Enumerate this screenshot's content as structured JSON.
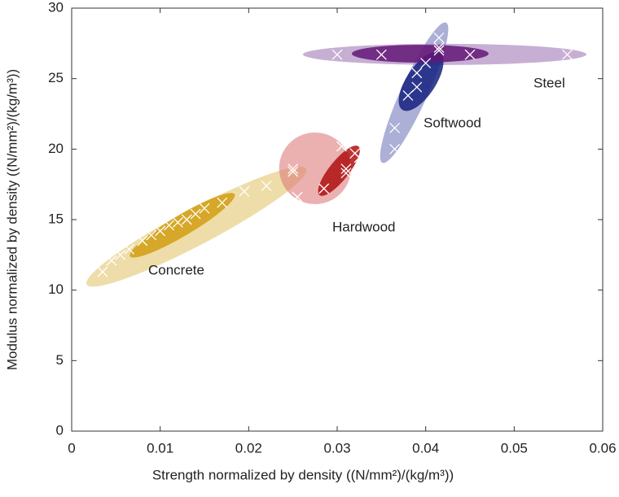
{
  "chart_data": {
    "type": "scatter",
    "xlabel": "Strength normalized by density ((N/mm²)/(kg/m³))",
    "ylabel": "Modulus normalized by density ((N/mm²)/(kg/m³))",
    "xlim": [
      0,
      0.06
    ],
    "ylim": [
      0,
      30
    ],
    "xticks": [
      0,
      0.01,
      0.02,
      0.03,
      0.04,
      0.05,
      0.06
    ],
    "yticks": [
      0,
      5,
      10,
      15,
      20,
      25,
      30
    ],
    "marker_color": "#ffffff",
    "series": [
      {
        "name": "Concrete",
        "outer_color": "#e3c76f",
        "inner_color": "#d19e12",
        "x": [
          0.0035,
          0.0045,
          0.0055,
          0.0065,
          0.008,
          0.009,
          0.01,
          0.011,
          0.012,
          0.013,
          0.014,
          0.015,
          0.017,
          0.0195,
          0.022,
          0.025
        ],
        "y": [
          11.3,
          12.1,
          12.5,
          12.9,
          13.5,
          13.9,
          14.2,
          14.6,
          14.8,
          15.0,
          15.4,
          15.8,
          16.2,
          17.0,
          17.4,
          18.4
        ],
        "outer": {
          "center": [
            0.0141,
            14.5
          ],
          "major_end": [
            0.0017,
            10.4
          ],
          "minor_end": [
            0.01316,
            15.64
          ]
        },
        "inner": {
          "center": [
            0.0125,
            14.6
          ],
          "major_end": [
            0.0066,
            12.4
          ],
          "minor_end": [
            0.01187,
            15.23
          ]
        }
      },
      {
        "name": "Hardwood",
        "outer_color": "#de7b7b",
        "inner_color": "#b01010",
        "x": [
          0.025,
          0.0255,
          0.0285,
          0.0305,
          0.031,
          0.031,
          0.032,
          0.0325
        ],
        "y": [
          18.6,
          16.6,
          17.2,
          20.2,
          18.6,
          18.3,
          19.7,
          19.4
        ],
        "outer": {
          "center": [
            0.0275,
            18.64
          ],
          "major_end": [
            0.03156,
            18.64
          ],
          "minor_end": [
            0.0275,
            21.18
          ]
        },
        "inner": {
          "center": [
            0.0302,
            18.47
          ],
          "major_end": [
            0.0324,
            20.2
          ],
          "minor_end": [
            0.03105,
            18.03
          ]
        }
      },
      {
        "name": "Softwood",
        "outer_color": "#7479bb",
        "inner_color": "#15217f",
        "x": [
          0.0365,
          0.0365,
          0.038,
          0.039,
          0.039,
          0.04,
          0.0415,
          0.0415
        ],
        "y": [
          21.5,
          20.0,
          23.8,
          24.4,
          25.4,
          26.1,
          27.0,
          27.9
        ],
        "outer": {
          "center": [
            0.0387,
            24.0
          ],
          "major_end": [
            0.0423,
            28.97
          ],
          "minor_end": [
            0.04008,
            23.62
          ]
        },
        "inner": {
          "center": [
            0.03948,
            24.81
          ],
          "major_end": [
            0.0416,
            26.83
          ],
          "minor_end": [
            0.04086,
            24.24
          ]
        }
      },
      {
        "name": "Steel",
        "outer_color": "#a27ab6",
        "inner_color": "#631676",
        "x": [
          0.03,
          0.035,
          0.0415,
          0.045,
          0.056
        ],
        "y": [
          26.7,
          26.7,
          27.2,
          26.7,
          26.7
        ],
        "outer": {
          "center": [
            0.04214,
            26.72
          ],
          "major_end": [
            0.05816,
            26.72
          ],
          "minor_end": [
            0.04214,
            27.47
          ]
        },
        "inner": {
          "center": [
            0.03938,
            26.77
          ],
          "major_end": [
            0.04711,
            26.77
          ],
          "minor_end": [
            0.03938,
            27.4
          ]
        }
      }
    ]
  }
}
